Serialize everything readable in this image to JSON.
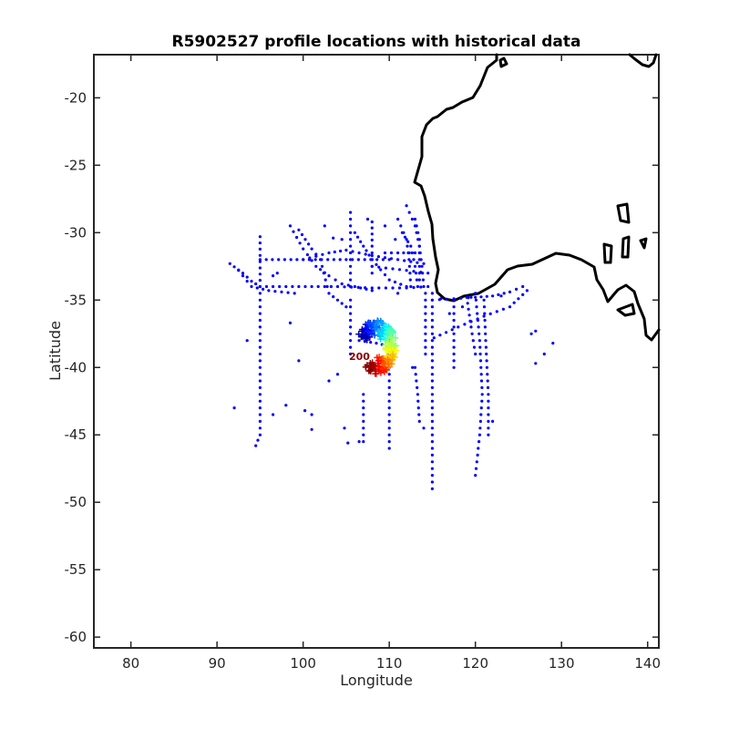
{
  "chart_data": {
    "type": "scatter",
    "title": "R5902527 profile locations with historical data",
    "xlabel": "Longitude",
    "ylabel": "Latitude",
    "xlim": [
      75.7,
      141.3
    ],
    "ylim": [
      -60.8,
      -16.8
    ],
    "xticks": [
      "80",
      "90",
      "100",
      "110",
      "120",
      "130",
      "140"
    ],
    "yticks": [
      "-20",
      "-25",
      "-30",
      "-35",
      "-40",
      "-45",
      "-50",
      "-55",
      "-60"
    ],
    "grid": false,
    "legend": "none",
    "colors": {
      "historical": "#0000ff",
      "coastline": "#000000",
      "axes": "#262626"
    },
    "historical_tracks": [
      [
        [
          91.5,
          -32.3
        ],
        [
          93,
          -33
        ],
        [
          94,
          -33.6
        ],
        [
          95,
          -34
        ],
        [
          98,
          -34
        ],
        [
          101,
          -34
        ],
        [
          104,
          -34
        ],
        [
          108,
          -34.1
        ],
        [
          112,
          -34.1
        ],
        [
          114.5,
          -34
        ]
      ],
      [
        [
          95,
          -30.3
        ],
        [
          95,
          -34
        ],
        [
          95,
          -38
        ],
        [
          95,
          -42
        ],
        [
          95,
          -45
        ],
        [
          94.5,
          -45.8
        ]
      ],
      [
        [
          92.5,
          -32.8
        ],
        [
          94,
          -34
        ],
        [
          96,
          -34.3
        ],
        [
          99,
          -34.5
        ]
      ],
      [
        [
          98.5,
          -29.5
        ],
        [
          100,
          -31.2
        ],
        [
          101.5,
          -32.5
        ],
        [
          103,
          -33.2
        ],
        [
          104.5,
          -33.8
        ],
        [
          106,
          -34
        ],
        [
          108,
          -34.3
        ]
      ],
      [
        [
          99.5,
          -29.8
        ],
        [
          101,
          -31.2
        ],
        [
          102,
          -32
        ],
        [
          103,
          -34.5
        ],
        [
          104,
          -35
        ],
        [
          105,
          -35.5
        ]
      ],
      [
        [
          100,
          -32
        ],
        [
          103,
          -31.5
        ],
        [
          105,
          -31.3
        ],
        [
          108,
          -31.7
        ],
        [
          111,
          -32
        ],
        [
          114,
          -32.3
        ]
      ],
      [
        [
          95,
          -32
        ],
        [
          100,
          -32
        ],
        [
          105,
          -32
        ],
        [
          110,
          -32
        ]
      ],
      [
        [
          105.5,
          -28.5
        ],
        [
          105.5,
          -30
        ],
        [
          105.5,
          -32
        ],
        [
          105.5,
          -34
        ]
      ],
      [
        [
          106,
          -30
        ],
        [
          107,
          -31
        ],
        [
          108,
          -32
        ],
        [
          110,
          -33.5
        ],
        [
          112,
          -34
        ]
      ],
      [
        [
          108,
          -32.5
        ],
        [
          112,
          -32.8
        ],
        [
          114.5,
          -33
        ]
      ],
      [
        [
          108,
          -29.2
        ],
        [
          108,
          -31
        ],
        [
          108,
          -33
        ]
      ],
      [
        [
          109.5,
          -31.5
        ],
        [
          111,
          -31.5
        ],
        [
          113,
          -31.5
        ]
      ],
      [
        [
          112,
          -28
        ],
        [
          113,
          -29.5
        ],
        [
          113.5,
          -31
        ],
        [
          113.8,
          -32.5
        ],
        [
          114,
          -34
        ]
      ],
      [
        [
          111,
          -29
        ],
        [
          112,
          -30.5
        ],
        [
          112.3,
          -32
        ],
        [
          112.5,
          -34
        ]
      ],
      [
        [
          111.5,
          -30
        ],
        [
          112.5,
          -31
        ],
        [
          113,
          -32.5
        ],
        [
          113.3,
          -34
        ]
      ],
      [
        [
          113,
          -29
        ],
        [
          113.5,
          -30.5
        ],
        [
          113.5,
          -33.5
        ]
      ],
      [
        [
          115,
          -34.5
        ],
        [
          115,
          -38
        ],
        [
          115,
          -41
        ],
        [
          115,
          -45
        ],
        [
          115,
          -49
        ]
      ],
      [
        [
          114.2,
          -34.5
        ],
        [
          114.2,
          -37
        ],
        [
          114.2,
          -39
        ]
      ],
      [
        [
          115.2,
          -37.8
        ],
        [
          118,
          -37
        ],
        [
          121,
          -36.2
        ],
        [
          124,
          -35.5
        ],
        [
          125.5,
          -34.6
        ]
      ],
      [
        [
          115,
          -35
        ],
        [
          117.5,
          -34.9
        ],
        [
          120,
          -34.8
        ],
        [
          122,
          -34.7
        ],
        [
          124,
          -34.4
        ],
        [
          125.5,
          -34
        ]
      ],
      [
        [
          117.5,
          -35
        ],
        [
          117.5,
          -37
        ],
        [
          117.5,
          -40
        ]
      ],
      [
        [
          120,
          -34.5
        ],
        [
          120.5,
          -38
        ],
        [
          120.8,
          -42
        ],
        [
          120.5,
          -45
        ],
        [
          120,
          -48
        ]
      ],
      [
        [
          121,
          -35
        ],
        [
          121.2,
          -38
        ],
        [
          121.5,
          -42
        ],
        [
          121.5,
          -45
        ]
      ],
      [
        [
          119,
          -34.8
        ],
        [
          119.5,
          -37
        ],
        [
          120,
          -39
        ]
      ],
      [
        [
          110,
          -38
        ],
        [
          110,
          -41
        ],
        [
          110,
          -44
        ],
        [
          110,
          -46
        ]
      ],
      [
        [
          113,
          -40
        ],
        [
          113.3,
          -42
        ],
        [
          113.5,
          -44
        ]
      ],
      [
        [
          105.5,
          -35
        ],
        [
          105.5,
          -37
        ],
        [
          105.5,
          -39
        ]
      ],
      [
        [
          107,
          -42
        ],
        [
          107,
          -44
        ],
        [
          107,
          -45.5
        ]
      ],
      [
        [
          106.5,
          -38
        ],
        [
          108.5,
          -38.2
        ],
        [
          110.5,
          -38.5
        ]
      ]
    ],
    "historical_points": [
      [
        93.5,
        -38
      ],
      [
        96.5,
        -43.5
      ],
      [
        92,
        -43
      ],
      [
        98.5,
        -36.7
      ],
      [
        99.5,
        -39.5
      ],
      [
        100.2,
        -43.2
      ],
      [
        101,
        -43.5
      ],
      [
        98,
        -42.8
      ],
      [
        101,
        -44.6
      ],
      [
        104,
        -40.5
      ],
      [
        104.8,
        -44.5
      ],
      [
        105.2,
        -45.6
      ],
      [
        106.5,
        -45.5
      ],
      [
        126.5,
        -37.5
      ],
      [
        127,
        -39.7
      ],
      [
        128,
        -39
      ],
      [
        129,
        -38.2
      ],
      [
        127,
        -37.3
      ],
      [
        103,
        -41
      ],
      [
        97,
        -33
      ],
      [
        126,
        -34.3
      ],
      [
        122,
        -44
      ],
      [
        114,
        -44.5
      ],
      [
        112.7,
        -40
      ],
      [
        111,
        -34.5
      ],
      [
        109.5,
        -29.5
      ],
      [
        110.7,
        -30.5
      ],
      [
        107.5,
        -29
      ],
      [
        104.5,
        -30.5
      ],
      [
        103.5,
        -30.4
      ],
      [
        102.5,
        -29.5
      ],
      [
        96.5,
        -33.2
      ],
      [
        119.5,
        -34.8
      ],
      [
        123,
        -34.7
      ],
      [
        116,
        -34.9
      ],
      [
        117,
        -36
      ],
      [
        118.5,
        -35.5
      ]
    ],
    "float_profiles": {
      "color_scale": "jet",
      "cycle_range": [
        1,
        200
      ],
      "cluster_center": [
        108.5,
        -38.5
      ],
      "cluster_extent_deg": [
        4.5,
        4.0
      ],
      "profile_labels": [
        "200"
      ]
    },
    "coastline_shown": true
  }
}
